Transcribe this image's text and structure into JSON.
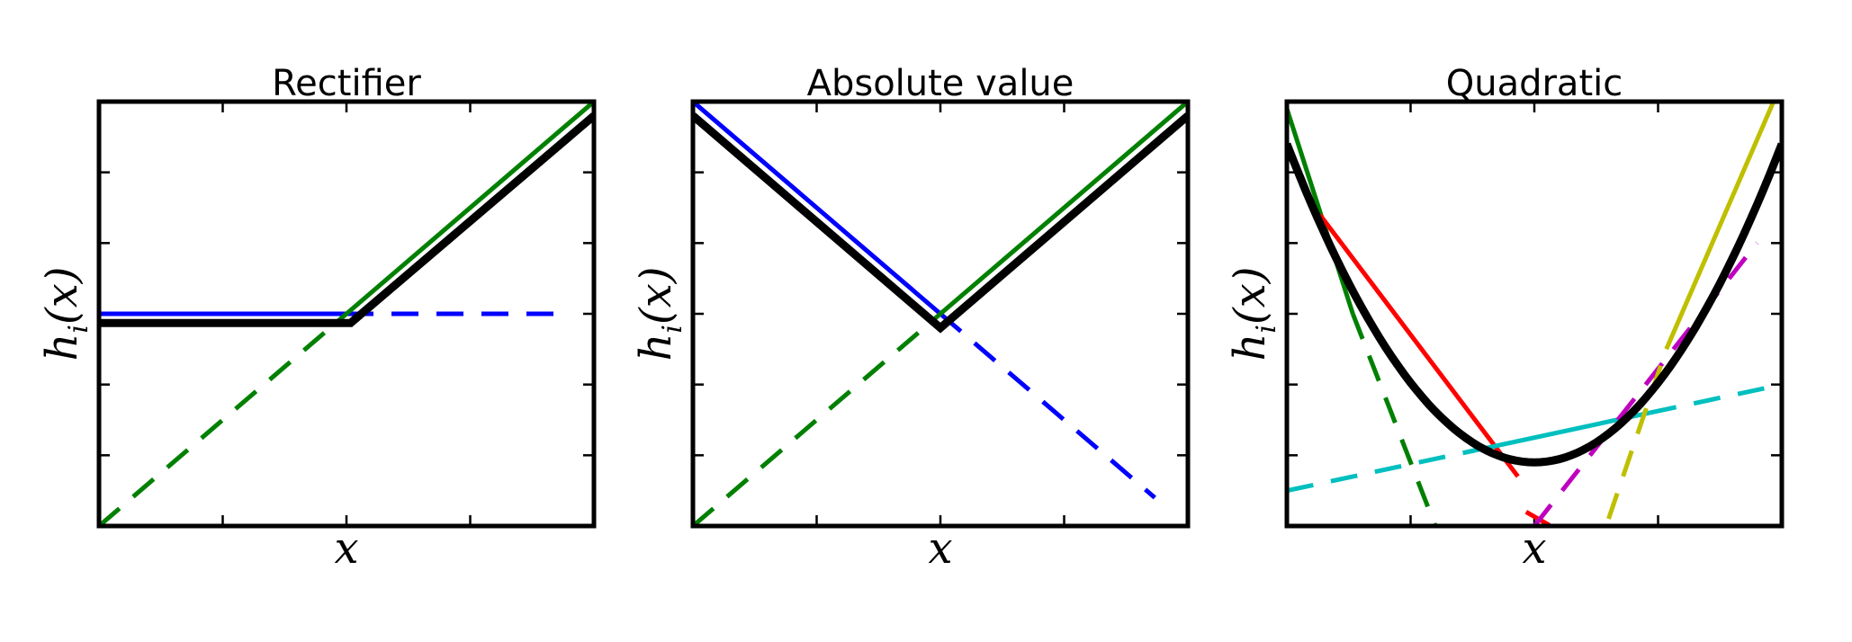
{
  "chart_data": [
    {
      "type": "line",
      "title": "Rectifier",
      "xlabel": "x",
      "ylabel": "h_i(x)",
      "xlim": [
        -3,
        3
      ],
      "ylim": [
        -3,
        3
      ],
      "grid": false,
      "series": [
        {
          "color": "#0000ff",
          "style": "solid",
          "x": [
            -3,
            0
          ],
          "y": [
            0,
            0
          ]
        },
        {
          "color": "#0000ff",
          "style": "dashed",
          "x": [
            0,
            2.7
          ],
          "y": [
            0,
            0
          ]
        },
        {
          "color": "#008000",
          "style": "solid",
          "x": [
            0,
            3
          ],
          "y": [
            0,
            3
          ]
        },
        {
          "color": "#008000",
          "style": "dashed",
          "x": [
            -3,
            0
          ],
          "y": [
            -3,
            0
          ]
        },
        {
          "color": "#000000",
          "style": "solid-thick",
          "x": [
            -3,
            0.05,
            3
          ],
          "y": [
            -0.13,
            -0.13,
            2.8
          ]
        }
      ]
    },
    {
      "type": "line",
      "title": "Absolute value",
      "xlabel": "x",
      "ylabel": "h_i(x)",
      "xlim": [
        -3,
        3
      ],
      "ylim": [
        -3,
        3
      ],
      "grid": false,
      "series": [
        {
          "color": "#0000ff",
          "style": "solid",
          "x": [
            -3,
            0
          ],
          "y": [
            3,
            0
          ]
        },
        {
          "color": "#0000ff",
          "style": "dashed",
          "x": [
            0,
            2.6
          ],
          "y": [
            0,
            -2.6
          ]
        },
        {
          "color": "#008000",
          "style": "solid",
          "x": [
            0,
            3
          ],
          "y": [
            0,
            3
          ]
        },
        {
          "color": "#008000",
          "style": "dashed",
          "x": [
            -3,
            0
          ],
          "y": [
            -3,
            0
          ]
        },
        {
          "color": "#000000",
          "style": "solid-thick",
          "x": [
            -3,
            0,
            3
          ],
          "y": [
            2.8,
            -0.2,
            2.8
          ]
        }
      ]
    },
    {
      "type": "line",
      "title": "Quadratic",
      "xlabel": "x",
      "ylabel": "h_i(x)",
      "xlim": [
        -3,
        3
      ],
      "ylim": [
        -3,
        3
      ],
      "grid": false,
      "series": [
        {
          "color": "#008000",
          "style": "solid",
          "x": [
            -3,
            -2.2
          ],
          "y": [
            2.9,
            0
          ]
        },
        {
          "color": "#008000",
          "style": "dashed",
          "x": [
            -2.2,
            -1.2
          ],
          "y": [
            0,
            -3
          ]
        },
        {
          "color": "#ff0000",
          "style": "solid",
          "x": [
            -2.6,
            -0.2
          ],
          "y": [
            1.4,
            -2.3
          ]
        },
        {
          "color": "#ff0000",
          "style": "dashed",
          "x": [
            -0.1,
            0.2
          ],
          "y": [
            -2.8,
            -3
          ]
        },
        {
          "color": "#00bfbf",
          "style": "solid",
          "x": [
            -0.6,
            1.4
          ],
          "y": [
            -1.9,
            -1.4
          ]
        },
        {
          "color": "#00bfbf",
          "style": "dashed",
          "x": [
            -3,
            -0.6
          ],
          "y": [
            -2.5,
            -1.9
          ]
        },
        {
          "color": "#00bfbf",
          "style": "dashed",
          "x": [
            1.4,
            3
          ],
          "y": [
            -1.4,
            -1
          ]
        },
        {
          "color": "#bf00bf",
          "style": "dashed",
          "x": [
            0,
            2.7
          ],
          "y": [
            -3,
            1
          ]
        },
        {
          "color": "#bfbf00",
          "style": "solid",
          "x": [
            1.6,
            2.9
          ],
          "y": [
            -0.5,
            3
          ]
        },
        {
          "color": "#bfbf00",
          "style": "dashed",
          "x": [
            0.9,
            1.6
          ],
          "y": [
            -2.9,
            -0.5
          ]
        },
        {
          "color": "#000000",
          "style": "curve-thick",
          "function": "0.5*x^2 - 2.1",
          "x": [
            -3,
            3
          ]
        }
      ]
    }
  ]
}
